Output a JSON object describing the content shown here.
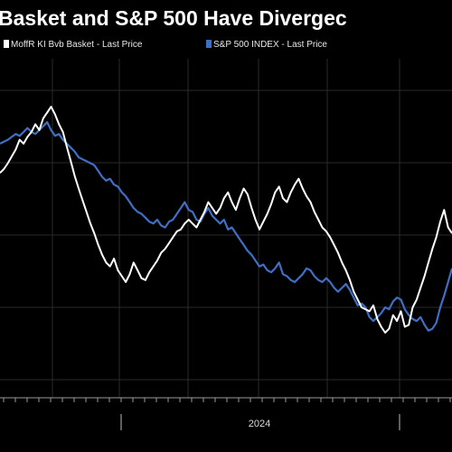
{
  "chart_data": {
    "type": "line",
    "title": "Basket and S&P 500 Have Divergec",
    "xlabel": "",
    "ylabel": "",
    "x_tick_labels": [
      "2024"
    ],
    "grid": true,
    "legend_position": "top-left",
    "series": [
      {
        "name": "MoffR KI Bvb Basket - Last Price",
        "color": "#ffffff",
        "values": [
          288,
          292,
          298,
          305,
          312,
          322,
          318,
          325,
          330,
          338,
          332,
          344,
          350,
          356,
          348,
          338,
          330,
          315,
          300,
          285,
          272,
          260,
          248,
          236,
          226,
          214,
          204,
          196,
          192,
          200,
          188,
          182,
          176,
          184,
          196,
          188,
          180,
          178,
          186,
          192,
          198,
          206,
          210,
          216,
          222,
          228,
          230,
          236,
          240,
          236,
          232,
          240,
          248,
          258,
          252,
          246,
          252,
          262,
          268,
          258,
          250,
          262,
          272,
          266,
          252,
          240,
          230,
          238,
          246,
          256,
          268,
          274,
          262,
          258,
          268,
          276,
          282,
          272,
          264,
          258,
          248,
          240,
          232,
          228,
          222,
          214,
          206,
          196,
          188,
          178,
          166,
          158,
          150,
          148,
          146,
          152,
          138,
          130,
          124,
          128,
          142,
          136,
          146,
          130,
          132,
          150,
          158,
          170,
          182,
          196,
          210,
          222,
          238,
          250,
          232,
          226
        ]
      },
      {
        "name": "S&P 500 INDEX - Last Price",
        "color": "#3f6fc4",
        "values": [
          318,
          320,
          322,
          325,
          328,
          326,
          330,
          334,
          330,
          328,
          332,
          336,
          340,
          332,
          326,
          328,
          322,
          318,
          314,
          310,
          304,
          302,
          300,
          298,
          296,
          290,
          284,
          280,
          282,
          276,
          274,
          268,
          264,
          258,
          252,
          248,
          246,
          242,
          238,
          236,
          240,
          234,
          232,
          238,
          240,
          246,
          252,
          258,
          250,
          248,
          240,
          238,
          246,
          252,
          244,
          240,
          236,
          240,
          230,
          232,
          226,
          220,
          214,
          208,
          204,
          198,
          192,
          194,
          188,
          186,
          190,
          196,
          184,
          182,
          178,
          176,
          180,
          184,
          190,
          188,
          182,
          178,
          176,
          180,
          176,
          170,
          166,
          170,
          174,
          168,
          160,
          152,
          154,
          150,
          140,
          136,
          140,
          144,
          150,
          148,
          156,
          160,
          158,
          148,
          142,
          138,
          136,
          140,
          132,
          126,
          128,
          134,
          150,
          162,
          176,
          190
        ]
      }
    ]
  }
}
